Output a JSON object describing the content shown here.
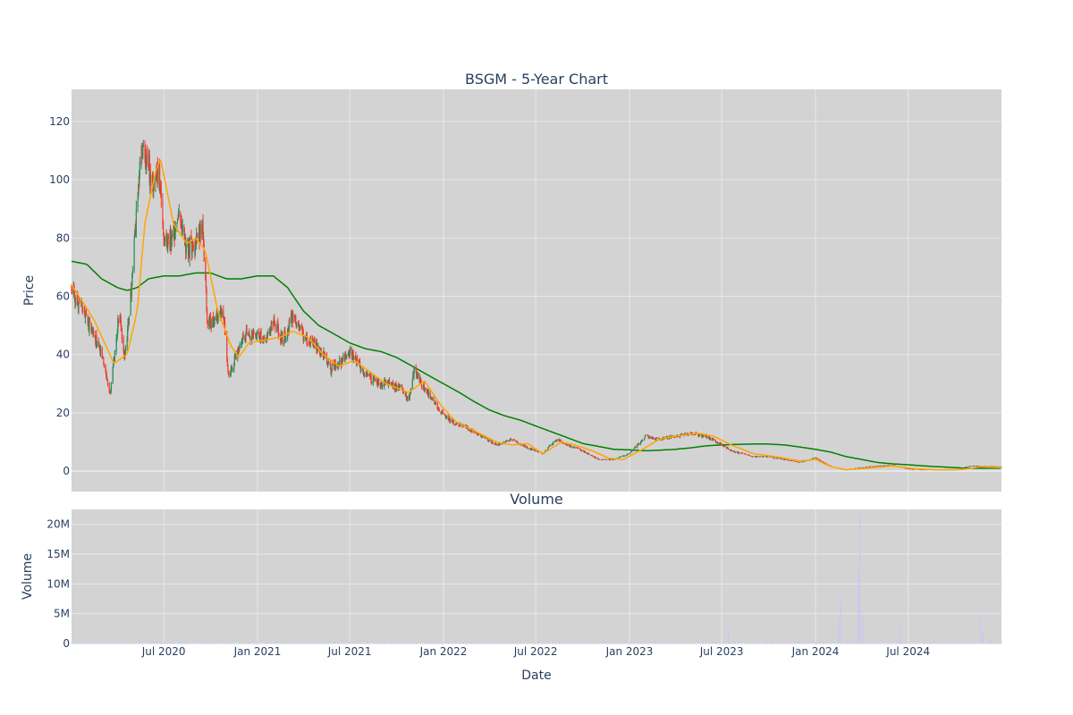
{
  "colors": {
    "plot_bg": "#d3d3d3",
    "grid": "#e8e8e8",
    "candle_up": "#2e8b57",
    "candle_down": "#ef3b2c",
    "ma_fast": "#ffa500",
    "ma_slow": "#008000",
    "volume_bar": "#c8c8f0",
    "text": "#2a3f5f"
  },
  "chart_data": [
    {
      "id": "price",
      "type": "candlestick",
      "title": "BSGM - 5-Year Chart",
      "xlabel": "",
      "ylabel": "Price",
      "xlim": [
        "2020-01-02",
        "2024-12-31"
      ],
      "ylim": [
        -7,
        131
      ],
      "yticks": [
        0,
        20,
        40,
        60,
        80,
        100,
        120
      ],
      "ytick_labels": [
        "0",
        "20",
        "40",
        "60",
        "80",
        "100",
        "120"
      ],
      "grid": true,
      "legend": "none",
      "close_anchors": [
        [
          "2020-01-02",
          62
        ],
        [
          "2020-01-20",
          57
        ],
        [
          "2020-02-10",
          48
        ],
        [
          "2020-02-28",
          41
        ],
        [
          "2020-03-18",
          27
        ],
        [
          "2020-03-25",
          38
        ],
        [
          "2020-04-05",
          56
        ],
        [
          "2020-04-15",
          38
        ],
        [
          "2020-04-28",
          62
        ],
        [
          "2020-05-10",
          92
        ],
        [
          "2020-05-20",
          112
        ],
        [
          "2020-06-01",
          105
        ],
        [
          "2020-06-12",
          97
        ],
        [
          "2020-06-22",
          104
        ],
        [
          "2020-07-01",
          78
        ],
        [
          "2020-07-20",
          81
        ],
        [
          "2020-08-01",
          90
        ],
        [
          "2020-08-15",
          76
        ],
        [
          "2020-09-01",
          78
        ],
        [
          "2020-09-15",
          83
        ],
        [
          "2020-09-25",
          50
        ],
        [
          "2020-10-10",
          52
        ],
        [
          "2020-10-25",
          56
        ],
        [
          "2020-11-05",
          32
        ],
        [
          "2020-11-20",
          40
        ],
        [
          "2020-12-10",
          47
        ],
        [
          "2020-12-31",
          47
        ],
        [
          "2021-01-15",
          45
        ],
        [
          "2021-02-01",
          52
        ],
        [
          "2021-02-20",
          45
        ],
        [
          "2021-03-10",
          53
        ],
        [
          "2021-04-01",
          46
        ],
        [
          "2021-04-20",
          44
        ],
        [
          "2021-05-10",
          40
        ],
        [
          "2021-05-25",
          35
        ],
        [
          "2021-06-15",
          38
        ],
        [
          "2021-07-01",
          41
        ],
        [
          "2021-07-20",
          36
        ],
        [
          "2021-08-15",
          31
        ],
        [
          "2021-09-15",
          30
        ],
        [
          "2021-10-10",
          28
        ],
        [
          "2021-10-25",
          25
        ],
        [
          "2021-11-05",
          35
        ],
        [
          "2021-11-20",
          30
        ],
        [
          "2021-12-10",
          24
        ],
        [
          "2022-01-15",
          17
        ],
        [
          "2022-02-15",
          15
        ],
        [
          "2022-03-15",
          12
        ],
        [
          "2022-04-15",
          9
        ],
        [
          "2022-05-15",
          11
        ],
        [
          "2022-06-15",
          8
        ],
        [
          "2022-07-15",
          6
        ],
        [
          "2022-08-10",
          11
        ],
        [
          "2022-09-01",
          9
        ],
        [
          "2022-10-01",
          7
        ],
        [
          "2022-11-01",
          4
        ],
        [
          "2022-12-01",
          4
        ],
        [
          "2023-01-01",
          6
        ],
        [
          "2023-02-01",
          12
        ],
        [
          "2023-03-01",
          11
        ],
        [
          "2023-04-01",
          12
        ],
        [
          "2023-05-01",
          13
        ],
        [
          "2023-06-01",
          12
        ],
        [
          "2023-07-01",
          9
        ],
        [
          "2023-07-20",
          7
        ],
        [
          "2023-09-01",
          5
        ],
        [
          "2023-10-01",
          5
        ],
        [
          "2023-11-01",
          4
        ],
        [
          "2023-12-01",
          3
        ],
        [
          "2024-01-01",
          4.5
        ],
        [
          "2024-02-01",
          1.5
        ],
        [
          "2024-03-01",
          0.5
        ],
        [
          "2024-04-01",
          1.2
        ],
        [
          "2024-05-01",
          1.8
        ],
        [
          "2024-06-01",
          2
        ],
        [
          "2024-07-01",
          0.8
        ],
        [
          "2024-08-01",
          0.5
        ],
        [
          "2024-09-01",
          0.5
        ],
        [
          "2024-10-01",
          0.5
        ],
        [
          "2024-11-01",
          1.8
        ],
        [
          "2024-12-31",
          1.5
        ]
      ],
      "ma_fast_anchors": [
        [
          "2020-01-02",
          64
        ],
        [
          "2020-02-15",
          52
        ],
        [
          "2020-03-25",
          37
        ],
        [
          "2020-04-20",
          40
        ],
        [
          "2020-05-10",
          55
        ],
        [
          "2020-05-25",
          85
        ],
        [
          "2020-06-15",
          103
        ],
        [
          "2020-06-25",
          107
        ],
        [
          "2020-07-20",
          85
        ],
        [
          "2020-08-15",
          78
        ],
        [
          "2020-09-01",
          80
        ],
        [
          "2020-09-20",
          76
        ],
        [
          "2020-10-15",
          55
        ],
        [
          "2020-11-10",
          43
        ],
        [
          "2020-11-25",
          39
        ],
        [
          "2020-12-15",
          44
        ],
        [
          "2021-01-15",
          45
        ],
        [
          "2021-02-15",
          46
        ],
        [
          "2021-03-10",
          48
        ],
        [
          "2021-04-10",
          46
        ],
        [
          "2021-05-10",
          40
        ],
        [
          "2021-06-10",
          36
        ],
        [
          "2021-07-10",
          38
        ],
        [
          "2021-08-10",
          34
        ],
        [
          "2021-09-10",
          30
        ],
        [
          "2021-10-25",
          27
        ],
        [
          "2021-11-25",
          31
        ],
        [
          "2021-12-25",
          23
        ],
        [
          "2022-01-25",
          17
        ],
        [
          "2022-03-01",
          14
        ],
        [
          "2022-04-15",
          10
        ],
        [
          "2022-05-15",
          9
        ],
        [
          "2022-06-15",
          9.5
        ],
        [
          "2022-07-15",
          6
        ],
        [
          "2022-08-20",
          10
        ],
        [
          "2022-09-15",
          9
        ],
        [
          "2022-10-20",
          7
        ],
        [
          "2022-11-20",
          4.5
        ],
        [
          "2022-12-20",
          4
        ],
        [
          "2023-02-01",
          8
        ],
        [
          "2023-03-01",
          11
        ],
        [
          "2023-04-01",
          12
        ],
        [
          "2023-05-15",
          13
        ],
        [
          "2023-06-15",
          12
        ],
        [
          "2023-07-20",
          9
        ],
        [
          "2023-09-01",
          6
        ],
        [
          "2023-10-15",
          5
        ],
        [
          "2023-12-01",
          3.5
        ],
        [
          "2024-01-01",
          4
        ],
        [
          "2024-02-01",
          1.5
        ],
        [
          "2024-03-01",
          0.5
        ],
        [
          "2024-04-15",
          1
        ],
        [
          "2024-06-01",
          1.8
        ],
        [
          "2024-07-15",
          0.8
        ],
        [
          "2024-09-01",
          0.4
        ],
        [
          "2024-10-15",
          0.6
        ],
        [
          "2024-11-20",
          1.5
        ],
        [
          "2024-12-31",
          1.2
        ]
      ],
      "ma_slow_anchors": [
        [
          "2020-01-02",
          72
        ],
        [
          "2020-02-01",
          71
        ],
        [
          "2020-03-01",
          66
        ],
        [
          "2020-04-01",
          63
        ],
        [
          "2020-04-20",
          62
        ],
        [
          "2020-05-10",
          63
        ],
        [
          "2020-06-01",
          66
        ],
        [
          "2020-07-01",
          67
        ],
        [
          "2020-08-01",
          67
        ],
        [
          "2020-09-01",
          68
        ],
        [
          "2020-10-01",
          68
        ],
        [
          "2020-11-01",
          66
        ],
        [
          "2020-12-01",
          66
        ],
        [
          "2021-01-01",
          67
        ],
        [
          "2021-02-01",
          67
        ],
        [
          "2021-03-01",
          63
        ],
        [
          "2021-04-01",
          55
        ],
        [
          "2021-05-01",
          50
        ],
        [
          "2021-06-01",
          47
        ],
        [
          "2021-07-01",
          44
        ],
        [
          "2021-08-01",
          42
        ],
        [
          "2021-09-01",
          41
        ],
        [
          "2021-10-01",
          39
        ],
        [
          "2021-11-01",
          36
        ],
        [
          "2021-12-01",
          33
        ],
        [
          "2022-01-01",
          30
        ],
        [
          "2022-02-01",
          27
        ],
        [
          "2022-03-01",
          24
        ],
        [
          "2022-04-01",
          21
        ],
        [
          "2022-05-01",
          19
        ],
        [
          "2022-06-01",
          17.5
        ],
        [
          "2022-07-01",
          15.5
        ],
        [
          "2022-08-01",
          13.5
        ],
        [
          "2022-09-01",
          11.5
        ],
        [
          "2022-10-01",
          9.5
        ],
        [
          "2022-11-01",
          8.5
        ],
        [
          "2022-12-01",
          7.5
        ],
        [
          "2023-01-01",
          7.3
        ],
        [
          "2023-02-01",
          7
        ],
        [
          "2023-03-01",
          7.2
        ],
        [
          "2023-04-01",
          7.5
        ],
        [
          "2023-05-01",
          8
        ],
        [
          "2023-06-01",
          8.7
        ],
        [
          "2023-07-01",
          9
        ],
        [
          "2023-08-01",
          9.2
        ],
        [
          "2023-09-01",
          9.3
        ],
        [
          "2023-10-01",
          9.3
        ],
        [
          "2023-11-01",
          9
        ],
        [
          "2023-12-01",
          8.3
        ],
        [
          "2024-01-01",
          7.5
        ],
        [
          "2024-02-01",
          6.5
        ],
        [
          "2024-03-01",
          5
        ],
        [
          "2024-04-01",
          4
        ],
        [
          "2024-05-01",
          3
        ],
        [
          "2024-06-01",
          2.5
        ],
        [
          "2024-07-01",
          2.2
        ],
        [
          "2024-08-01",
          1.8
        ],
        [
          "2024-09-01",
          1.5
        ],
        [
          "2024-10-01",
          1.2
        ],
        [
          "2024-11-01",
          1
        ],
        [
          "2024-12-31",
          1
        ]
      ]
    },
    {
      "id": "volume",
      "type": "bar",
      "title": "Volume",
      "xlabel": "Date",
      "ylabel": "Volume",
      "xlim": [
        "2020-01-02",
        "2024-12-31"
      ],
      "ylim": [
        0,
        22500000
      ],
      "yticks": [
        0,
        5000000,
        10000000,
        15000000,
        20000000
      ],
      "ytick_labels": [
        "0",
        "5M",
        "10M",
        "15M",
        "20M"
      ],
      "xticks": [
        "2020-07-01",
        "2021-01-01",
        "2021-07-01",
        "2022-01-01",
        "2022-07-01",
        "2023-01-01",
        "2023-07-01",
        "2024-01-01",
        "2024-07-01"
      ],
      "xtick_labels": [
        "Jul 2020",
        "Jan 2021",
        "Jul 2021",
        "Jan 2022",
        "Jul 2022",
        "Jan 2023",
        "Jul 2023",
        "Jan 2024",
        "Jul 2024"
      ],
      "grid": true,
      "spikes": [
        [
          "2023-07-15",
          2400000
        ],
        [
          "2024-02-15",
          4500000
        ],
        [
          "2024-02-20",
          7500000
        ],
        [
          "2024-03-25",
          12000000
        ],
        [
          "2024-03-28",
          21500000
        ],
        [
          "2024-04-02",
          4500000
        ],
        [
          "2024-06-15",
          2600000
        ],
        [
          "2024-11-20",
          4800000
        ],
        [
          "2024-11-25",
          2000000
        ],
        [
          "2024-12-10",
          800000
        ]
      ]
    }
  ]
}
